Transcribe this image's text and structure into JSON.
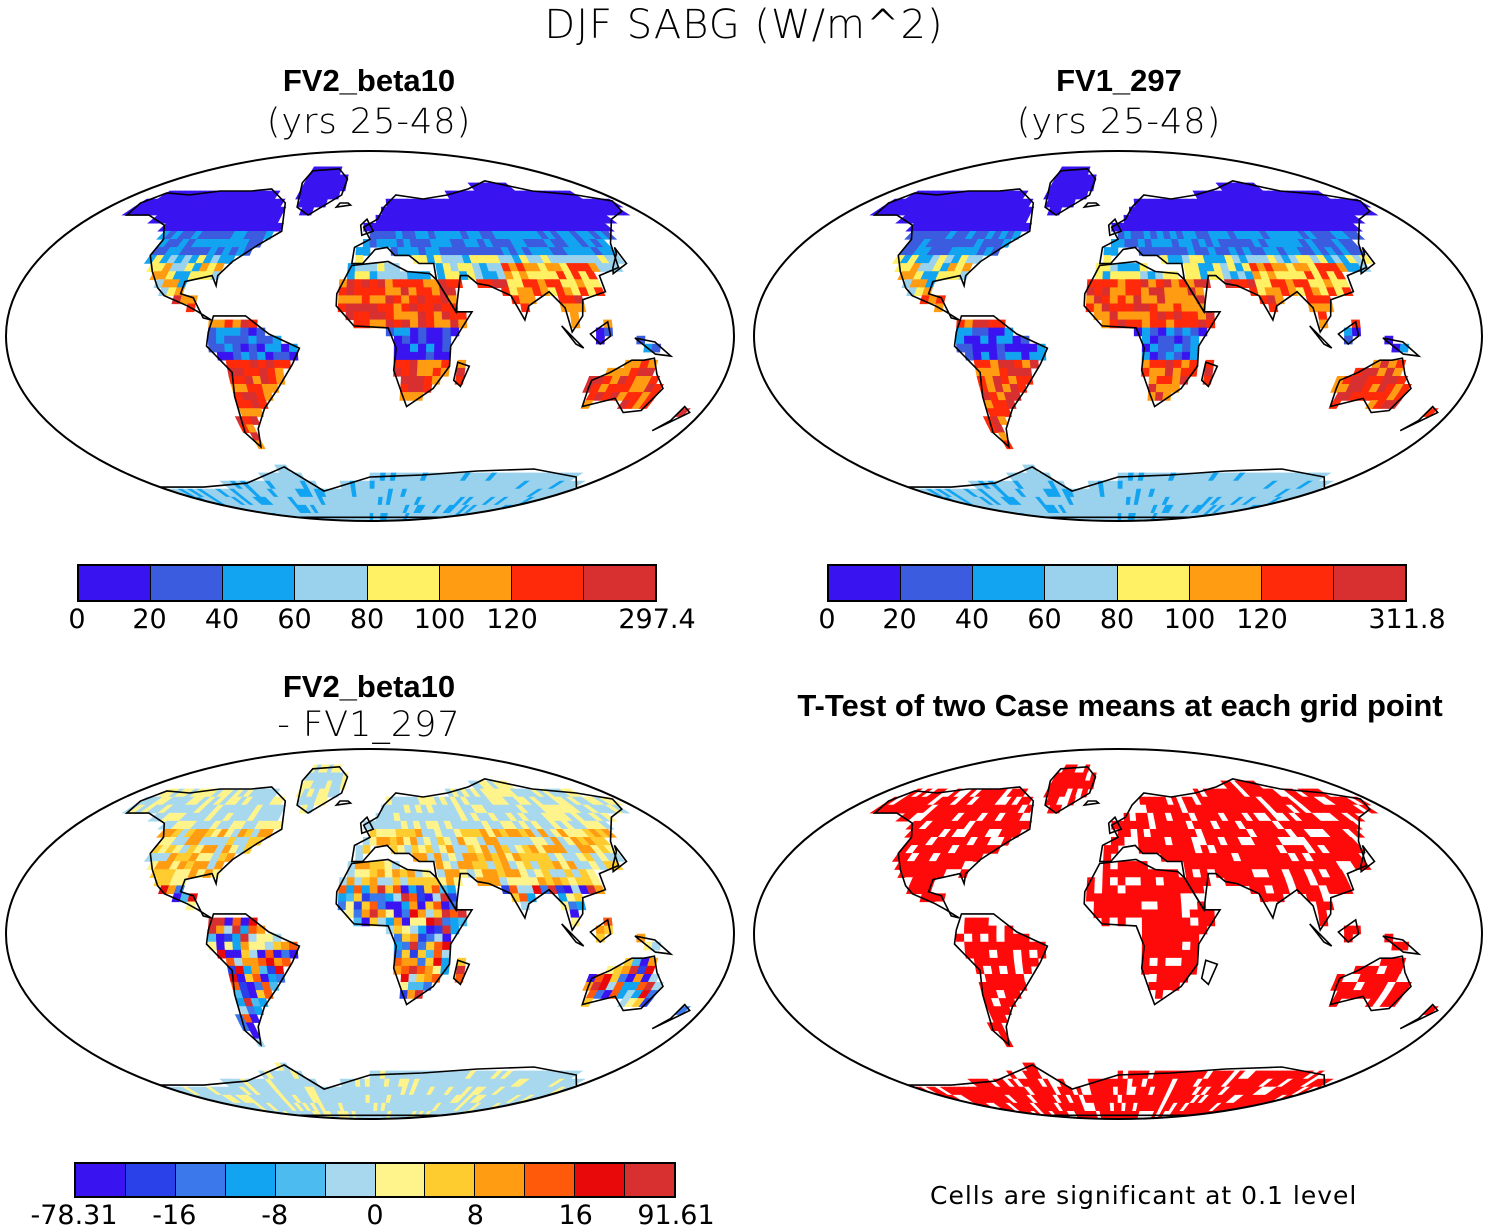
{
  "figure": {
    "title": "DJF SABG (W/m^2)"
  },
  "panels": {
    "top_left": {
      "title": "FV2_beta10",
      "subtitle": "(yrs 25-48)"
    },
    "top_right": {
      "title": "FV1_297",
      "subtitle": "(yrs 25-48)"
    },
    "bottom_left": {
      "title": "FV2_beta10",
      "subtitle": "- FV1_297"
    },
    "bottom_right": {
      "title": "T-Test of two Case means at each grid point",
      "note": "Cells are significant at 0.1 level"
    }
  },
  "colorbars": {
    "abs_left": {
      "colors": [
        "#3a14f0",
        "#3c5ce0",
        "#12a4f0",
        "#9ad2ee",
        "#fff064",
        "#ff9c12",
        "#ff2a0a",
        "#d83030"
      ],
      "labels": [
        "0",
        "20",
        "40",
        "60",
        "80",
        "100",
        "120",
        "297.4"
      ]
    },
    "abs_right": {
      "colors": [
        "#3a14f0",
        "#3c5ce0",
        "#12a4f0",
        "#9ad2ee",
        "#fff064",
        "#ff9c12",
        "#ff2a0a",
        "#d83030"
      ],
      "labels": [
        "0",
        "20",
        "40",
        "60",
        "80",
        "100",
        "120",
        "311.8"
      ]
    },
    "diff": {
      "colors": [
        "#3a14f0",
        "#2a40e8",
        "#3a78ec",
        "#12a4f0",
        "#4cbcf0",
        "#a8d8ee",
        "#fff48c",
        "#ffcc30",
        "#ff9c12",
        "#ff5a0a",
        "#e80a0a",
        "#d83030"
      ],
      "labels": [
        "-78.31",
        "-16",
        "-8",
        "0",
        "8",
        "16",
        "91.61"
      ]
    }
  },
  "map_colors": {
    "ocean": "#ffffff",
    "sig": "#ff0a0a",
    "coast": "#000000"
  }
}
